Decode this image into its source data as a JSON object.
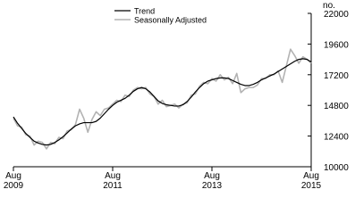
{
  "chart_data": {
    "type": "line",
    "y_unit": "no.",
    "categories": [
      "Aug 2009",
      null,
      null,
      null,
      null,
      null,
      null,
      null,
      null,
      null,
      null,
      null,
      null,
      null,
      null,
      null,
      null,
      null,
      null,
      null,
      null,
      null,
      null,
      null,
      "Aug 2011",
      null,
      null,
      null,
      null,
      null,
      null,
      null,
      null,
      null,
      null,
      null,
      null,
      null,
      null,
      null,
      null,
      null,
      null,
      null,
      null,
      null,
      null,
      null,
      "Aug 2013",
      null,
      null,
      null,
      null,
      null,
      null,
      null,
      null,
      null,
      null,
      null,
      null,
      null,
      null,
      null,
      null,
      null,
      null,
      null,
      null,
      null,
      null,
      null,
      "Aug 2015"
    ],
    "series": [
      {
        "name": "Trend",
        "color": "#000000",
        "width": 1.2,
        "values": [
          13900,
          13400,
          13000,
          12600,
          12300,
          12000,
          11850,
          11750,
          11700,
          11750,
          11900,
          12100,
          12350,
          12650,
          12950,
          13200,
          13350,
          13450,
          13450,
          13450,
          13550,
          13800,
          14150,
          14500,
          14800,
          15050,
          15200,
          15350,
          15600,
          15900,
          16100,
          16200,
          16100,
          15850,
          15500,
          15150,
          14950,
          14850,
          14800,
          14750,
          14750,
          14850,
          15100,
          15450,
          15850,
          16200,
          16500,
          16700,
          16800,
          16900,
          16950,
          16950,
          16900,
          16750,
          16600,
          16450,
          16350,
          16350,
          16450,
          16600,
          16800,
          16950,
          17100,
          17250,
          17450,
          17650,
          17850,
          18050,
          18250,
          18400,
          18450,
          18400,
          18200
        ]
      },
      {
        "name": "Seasonally Adjusted",
        "color": "#b3b3b3",
        "width": 1.6,
        "values": [
          13800,
          13200,
          13100,
          12500,
          12400,
          11700,
          12000,
          11900,
          11400,
          11900,
          11800,
          12300,
          12200,
          12800,
          12900,
          13300,
          14500,
          13800,
          12700,
          13700,
          14300,
          14000,
          14500,
          14600,
          14900,
          15200,
          15100,
          15600,
          15500,
          16000,
          16200,
          16100,
          16200,
          15700,
          15500,
          14900,
          15200,
          14700,
          14800,
          14900,
          14600,
          14900,
          15000,
          15600,
          15700,
          16300,
          16600,
          16500,
          16900,
          16700,
          17200,
          16800,
          17000,
          16500,
          17300,
          15800,
          16100,
          16200,
          16200,
          16400,
          16900,
          16900,
          17200,
          17200,
          17500,
          16600,
          17900,
          19200,
          18700,
          18100,
          18600,
          18400,
          18100
        ]
      }
    ],
    "ylim": [
      10000,
      22000
    ],
    "yticks": [
      10000,
      12400,
      14800,
      17200,
      19600,
      22000
    ]
  }
}
